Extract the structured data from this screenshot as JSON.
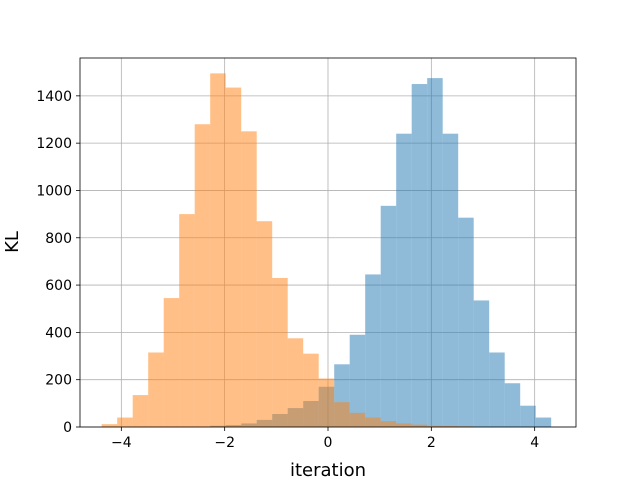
{
  "chart_data": {
    "type": "histogram",
    "xlabel": "iteration",
    "ylabel": "KL",
    "xlim": [
      -4.8,
      4.8
    ],
    "ylim": [
      0,
      1560
    ],
    "grid": true,
    "xticks": [
      -4,
      -2,
      0,
      2,
      4
    ],
    "yticks": [
      0,
      200,
      400,
      600,
      800,
      1000,
      1200,
      1400
    ],
    "series": [
      {
        "color": "#1f77b4",
        "opacity": 0.5,
        "bin_edges": [
          -2.28,
          -1.98,
          -1.68,
          -1.38,
          -1.08,
          -0.78,
          -0.48,
          -0.18,
          0.12,
          0.42,
          0.72,
          1.02,
          1.32,
          1.62,
          1.92,
          2.22,
          2.52,
          2.82,
          3.12,
          3.42,
          3.72,
          4.02,
          4.32
        ],
        "counts": [
          5,
          8,
          15,
          30,
          55,
          80,
          110,
          170,
          265,
          390,
          645,
          935,
          1240,
          1450,
          1475,
          1240,
          885,
          535,
          315,
          185,
          90,
          40
        ]
      },
      {
        "color": "#ff7f0e",
        "opacity": 0.5,
        "bin_edges": [
          -4.38,
          -4.08,
          -3.78,
          -3.48,
          -3.18,
          -2.88,
          -2.58,
          -2.28,
          -1.98,
          -1.68,
          -1.38,
          -1.08,
          -0.78,
          -0.48,
          -0.18,
          0.12,
          0.42,
          0.72,
          1.02,
          1.32,
          1.62,
          1.92,
          2.22,
          2.52,
          2.82
        ],
        "counts": [
          12,
          40,
          135,
          315,
          545,
          900,
          1280,
          1495,
          1435,
          1250,
          870,
          630,
          375,
          310,
          205,
          105,
          60,
          40,
          25,
          15,
          10,
          5,
          4,
          3
        ]
      }
    ]
  }
}
